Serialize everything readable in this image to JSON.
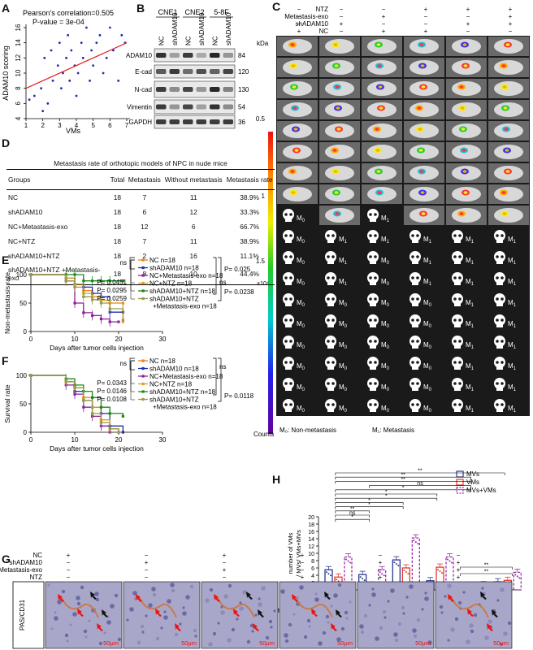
{
  "panels": {
    "A": "A",
    "B": "B",
    "C": "C",
    "D": "D",
    "E": "E",
    "F": "F",
    "G": "G",
    "H": "H"
  },
  "colors": {
    "nc": "#f07d1a",
    "shADAM10": "#1f2fa8",
    "nc_exo": "#8e1f9c",
    "nc_ntz": "#e0a01f",
    "sh_ntz": "#1a8a1a",
    "sh_ntz_exo": "#9a9a4a",
    "mvs": "#2b3a8f",
    "vms": "#e53a2a",
    "mvsvms": "#9a2ba8",
    "regression": "#e02020"
  },
  "panelA": {
    "chart_data": {
      "type": "scatter",
      "title": "Pearson's correlation=0.505",
      "subtitle": "P-value = 3e-04",
      "xlabel": "VMs",
      "ylabel": "ADAM10 scoring",
      "xlim": [
        1,
        7
      ],
      "ylim": [
        4,
        16
      ],
      "xticks": [
        "1",
        "2",
        "3",
        "4",
        "5",
        "6",
        "7"
      ],
      "yticks": [
        "4",
        "6",
        "8",
        "10",
        "12",
        "14",
        "16"
      ],
      "x": [
        1.2,
        1.5,
        1.9,
        2.0,
        2.1,
        2.3,
        2.5,
        2.6,
        2.9,
        3.0,
        3.1,
        3.2,
        3.4,
        3.5,
        3.6,
        3.7,
        3.9,
        4.0,
        4.1,
        4.3,
        4.4,
        4.6,
        4.8,
        4.9,
        5.0,
        5.2,
        5.4,
        5.6,
        5.8,
        6.0,
        6.2,
        6.5,
        6.7,
        6.9
      ],
      "y": [
        6.5,
        7,
        8,
        5,
        12,
        6,
        13,
        9,
        11,
        14,
        8,
        10,
        12,
        15,
        9,
        13,
        11,
        7,
        10,
        14,
        12,
        16,
        9,
        13,
        11,
        14,
        15,
        10,
        12,
        16,
        13,
        9,
        15,
        14
      ],
      "regression": {
        "x": [
          1,
          7
        ],
        "y": [
          8,
          14
        ]
      }
    }
  },
  "panelB": {
    "cell_lines": [
      "CNE1",
      "CNE2",
      "5-8F"
    ],
    "lanes": [
      "NC",
      "shADAM10",
      "NC",
      "shADAM10",
      "NC",
      "shADAM10"
    ],
    "kda_label": "kDa",
    "proteins": [
      {
        "name": "ADAM10",
        "kda": "84",
        "intensity": [
          0.9,
          0.35,
          0.85,
          0.3,
          0.95,
          0.4
        ]
      },
      {
        "name": "E-cad",
        "kda": "120",
        "intensity": [
          0.7,
          0.85,
          0.6,
          0.75,
          0.65,
          0.8
        ]
      },
      {
        "name": "N-cad",
        "kda": "130",
        "intensity": [
          0.85,
          0.45,
          0.8,
          0.4,
          0.95,
          0.5
        ]
      },
      {
        "name": "Vimentin",
        "kda": "54",
        "intensity": [
          0.85,
          0.4,
          0.8,
          0.35,
          0.9,
          0.45
        ]
      },
      {
        "name": "GAPDH",
        "kda": "36",
        "intensity": [
          0.85,
          0.85,
          0.85,
          0.85,
          0.85,
          0.85
        ]
      }
    ]
  },
  "panelC": {
    "conditions": [
      "NTZ",
      "Metastasis-exo",
      "shADAM10",
      "NC"
    ],
    "signs": [
      [
        "−",
        "−",
        "−",
        "+",
        "+",
        "+"
      ],
      [
        "−",
        "−",
        "+",
        "−",
        "−",
        "+"
      ],
      [
        "−",
        "+",
        "−",
        "−",
        "+",
        "+"
      ],
      [
        "+",
        "−",
        "+",
        "+",
        "−",
        "−"
      ]
    ],
    "scale_ticks": [
      "0.5",
      "1",
      "1.5"
    ],
    "scale_unit": "×10⁴",
    "counts_label": "Counts",
    "legend_m0": "M₀: Non-metastasis",
    "legend_m1": "M₁: Metastasis",
    "skulls": [
      [
        "M0",
        "",
        "M1",
        "",
        "",
        ""
      ],
      [
        "M0",
        "M1",
        "M1",
        "M1",
        "M1",
        "M1"
      ],
      [
        "M0",
        "M1",
        "M0",
        "M1",
        "M1",
        "M1"
      ],
      [
        "M0",
        "M1",
        "M0",
        "M1",
        "M1",
        "M1"
      ],
      [
        "M0",
        "M0",
        "M0",
        "M0",
        "M1",
        "M1"
      ],
      [
        "M0",
        "M0",
        "M0",
        "M0",
        "M1",
        "M1"
      ],
      [
        "M0",
        "M0",
        "M0",
        "M0",
        "M1",
        "M1"
      ],
      [
        "M0",
        "M0",
        "M0",
        "M0",
        "M1",
        "M1"
      ]
    ]
  },
  "panelD": {
    "title": "Metastasis rate of orthotopic models of NPC in nude mice",
    "headers": [
      "Groups",
      "Total",
      "Metastasis",
      "Without metastasis",
      "Metastasis rate"
    ],
    "rows": [
      [
        "NC",
        "18",
        "7",
        "11",
        "38.9%"
      ],
      [
        "shADAM10",
        "18",
        "6",
        "12",
        "33.3%"
      ],
      [
        "NC+Metastasis-exo",
        "18",
        "12",
        "6",
        "66.7%"
      ],
      [
        "NC+NTZ",
        "18",
        "7",
        "11",
        "38.9%"
      ],
      [
        "shADAM10+NTZ",
        "18",
        "2",
        "16",
        "11.1%"
      ],
      [
        "shADAM10+NTZ +Metastasis-exo",
        "18",
        "8",
        "10",
        "44.4%"
      ]
    ]
  },
  "panelE": {
    "chart_data": {
      "type": "line",
      "xlabel": "Days after tumor cells injection",
      "ylabel": "Non-metastasis rate",
      "xlim": [
        0,
        30
      ],
      "ylim": [
        0,
        100
      ],
      "xticks": [
        "0",
        "10",
        "20",
        "30"
      ],
      "yticks": [
        "0",
        "50",
        "100"
      ],
      "series": [
        {
          "name": "NC n=18",
          "x": [
            0,
            8,
            10,
            12,
            14,
            16,
            18,
            21
          ],
          "y": [
            100,
            94,
            83,
            72,
            61,
            55,
            50,
            50
          ]
        },
        {
          "name": "shADAM10 n=18",
          "x": [
            0,
            8,
            10,
            12,
            14,
            16,
            18,
            21
          ],
          "y": [
            100,
            94,
            83,
            78,
            67,
            61,
            34,
            34
          ]
        },
        {
          "name": "NC+Metastasis-exo n=18",
          "x": [
            0,
            8,
            10,
            12,
            14,
            16,
            18,
            20
          ],
          "y": [
            100,
            89,
            50,
            33,
            28,
            22,
            17,
            17
          ]
        },
        {
          "name": "NC+NTZ n=18",
          "x": [
            0,
            8,
            10,
            12,
            14,
            16,
            18,
            21
          ],
          "y": [
            100,
            94,
            83,
            67,
            61,
            55,
            50,
            17
          ]
        },
        {
          "name": "shADAM10+NTZ n=18",
          "x": [
            0,
            8,
            10,
            12,
            14,
            16,
            18,
            21
          ],
          "y": [
            100,
            100,
            100,
            89,
            89,
            89,
            89,
            89
          ]
        },
        {
          "name": "shADAM10+NTZ +Metastasis-exo n=18",
          "x": [
            0,
            8,
            10,
            12,
            14,
            16,
            18,
            21
          ],
          "y": [
            100,
            89,
            78,
            61,
            56,
            50,
            40,
            20
          ]
        }
      ],
      "annotations": {
        "ns": "ns",
        "p1": "P= 0.0451",
        "p2": "P= 0.0295",
        "p3": "P= 0.0259",
        "p4": "P= 0.025",
        "p5": "P= 0.0238",
        "ns2": "ns"
      }
    }
  },
  "panelF": {
    "chart_data": {
      "type": "line",
      "xlabel": "Days after tumor cells injection",
      "ylabel": "Survival rate",
      "xlim": [
        0,
        30
      ],
      "ylim": [
        0,
        100
      ],
      "xticks": [
        "0",
        "10",
        "20",
        "30"
      ],
      "yticks": [
        "0",
        "50",
        "100"
      ],
      "series": [
        {
          "name": "NC n=18",
          "x": [
            0,
            8,
            10,
            12,
            14,
            16,
            18,
            20
          ],
          "y": [
            100,
            89,
            78,
            61,
            44,
            22,
            6,
            0
          ]
        },
        {
          "name": "shADAM10 n=18",
          "x": [
            0,
            8,
            10,
            12,
            14,
            16,
            18,
            21
          ],
          "y": [
            100,
            89,
            72,
            56,
            44,
            33,
            11,
            0
          ]
        },
        {
          "name": "NC+Metastasis-exo n=18",
          "x": [
            0,
            8,
            10,
            12,
            14,
            16,
            18
          ],
          "y": [
            100,
            83,
            67,
            44,
            28,
            11,
            0
          ]
        },
        {
          "name": "NC+NTZ n=18",
          "x": [
            0,
            8,
            10,
            12,
            14,
            16,
            18,
            20
          ],
          "y": [
            100,
            89,
            78,
            61,
            44,
            22,
            6,
            0
          ]
        },
        {
          "name": "shADAM10+NTZ n=18",
          "x": [
            0,
            8,
            10,
            12,
            14,
            16,
            18,
            21
          ],
          "y": [
            100,
            94,
            83,
            72,
            61,
            44,
            33,
            28
          ]
        },
        {
          "name": "shADAM10+NTZ +Metastasis-exo n=18",
          "x": [
            0,
            8,
            10,
            12,
            14,
            16,
            18,
            20
          ],
          "y": [
            100,
            89,
            78,
            56,
            33,
            17,
            6,
            0
          ]
        }
      ],
      "annotations": {
        "ns": "ns",
        "p1": "P= 0.0343",
        "p2": "P= 0.0146",
        "p3": "P= 0.0108",
        "p4": "P= 0.0118",
        "ns2": "ns"
      }
    }
  },
  "panelG": {
    "conditions": [
      "NC",
      "shADAM10",
      "Metastasis-exo",
      "NTZ"
    ],
    "signs": [
      [
        "+",
        "−",
        "+",
        "+",
        "−",
        "−"
      ],
      [
        "−",
        "+",
        "−",
        "−",
        "+",
        "+"
      ],
      [
        "−",
        "−",
        "+",
        "−",
        "−",
        "+"
      ],
      [
        "−",
        "−",
        "−",
        "+",
        "+",
        "+"
      ]
    ],
    "stain_label": "PAS/CD31",
    "scalebar": "50μm"
  },
  "panelH": {
    "chart_data": {
      "type": "bar",
      "ylabel": "number of VMs / MVs/ VMs+MVs",
      "ylim": [
        0,
        20
      ],
      "yticks": [
        "0",
        "2",
        "4",
        "6",
        "8",
        "10",
        "12",
        "14",
        "16",
        "18",
        "20"
      ],
      "categories": [
        "NC",
        "shADAM10",
        "NC+Metastasis-exo",
        "NC+NTZ",
        "shADAM10+NTZ",
        "shADAM10+NTZ+Metastasis-exo"
      ],
      "series": [
        {
          "name": "MVs",
          "values": [
            5.5,
            4.2,
            8.2,
            2.5,
            0.8,
            2.2
          ]
        },
        {
          "name": "VMs",
          "values": [
            3.5,
            1.3,
            6.0,
            6.2,
            0.6,
            2.6
          ]
        },
        {
          "name": "MVs+VMs",
          "values": [
            9.0,
            5.5,
            14.2,
            9.0,
            1.4,
            4.8
          ]
        }
      ],
      "row_labels": [
        "NC",
        "shADAM10",
        "Metastasis-exo",
        "NTZ"
      ],
      "signs": [
        [
          "+",
          "−",
          "+",
          "+",
          "−",
          "−"
        ],
        [
          "−",
          "+",
          "−",
          "−",
          "+",
          "+"
        ],
        [
          "−",
          "−",
          "+",
          "−",
          "−",
          "+"
        ],
        [
          "−",
          "−",
          "−",
          "+",
          "+",
          "+"
        ]
      ],
      "sig_labels": [
        "**",
        "**",
        "**",
        "ns",
        "*",
        "*",
        "*",
        "*",
        "*",
        "**",
        "ns",
        "*",
        "**",
        "**"
      ]
    }
  }
}
